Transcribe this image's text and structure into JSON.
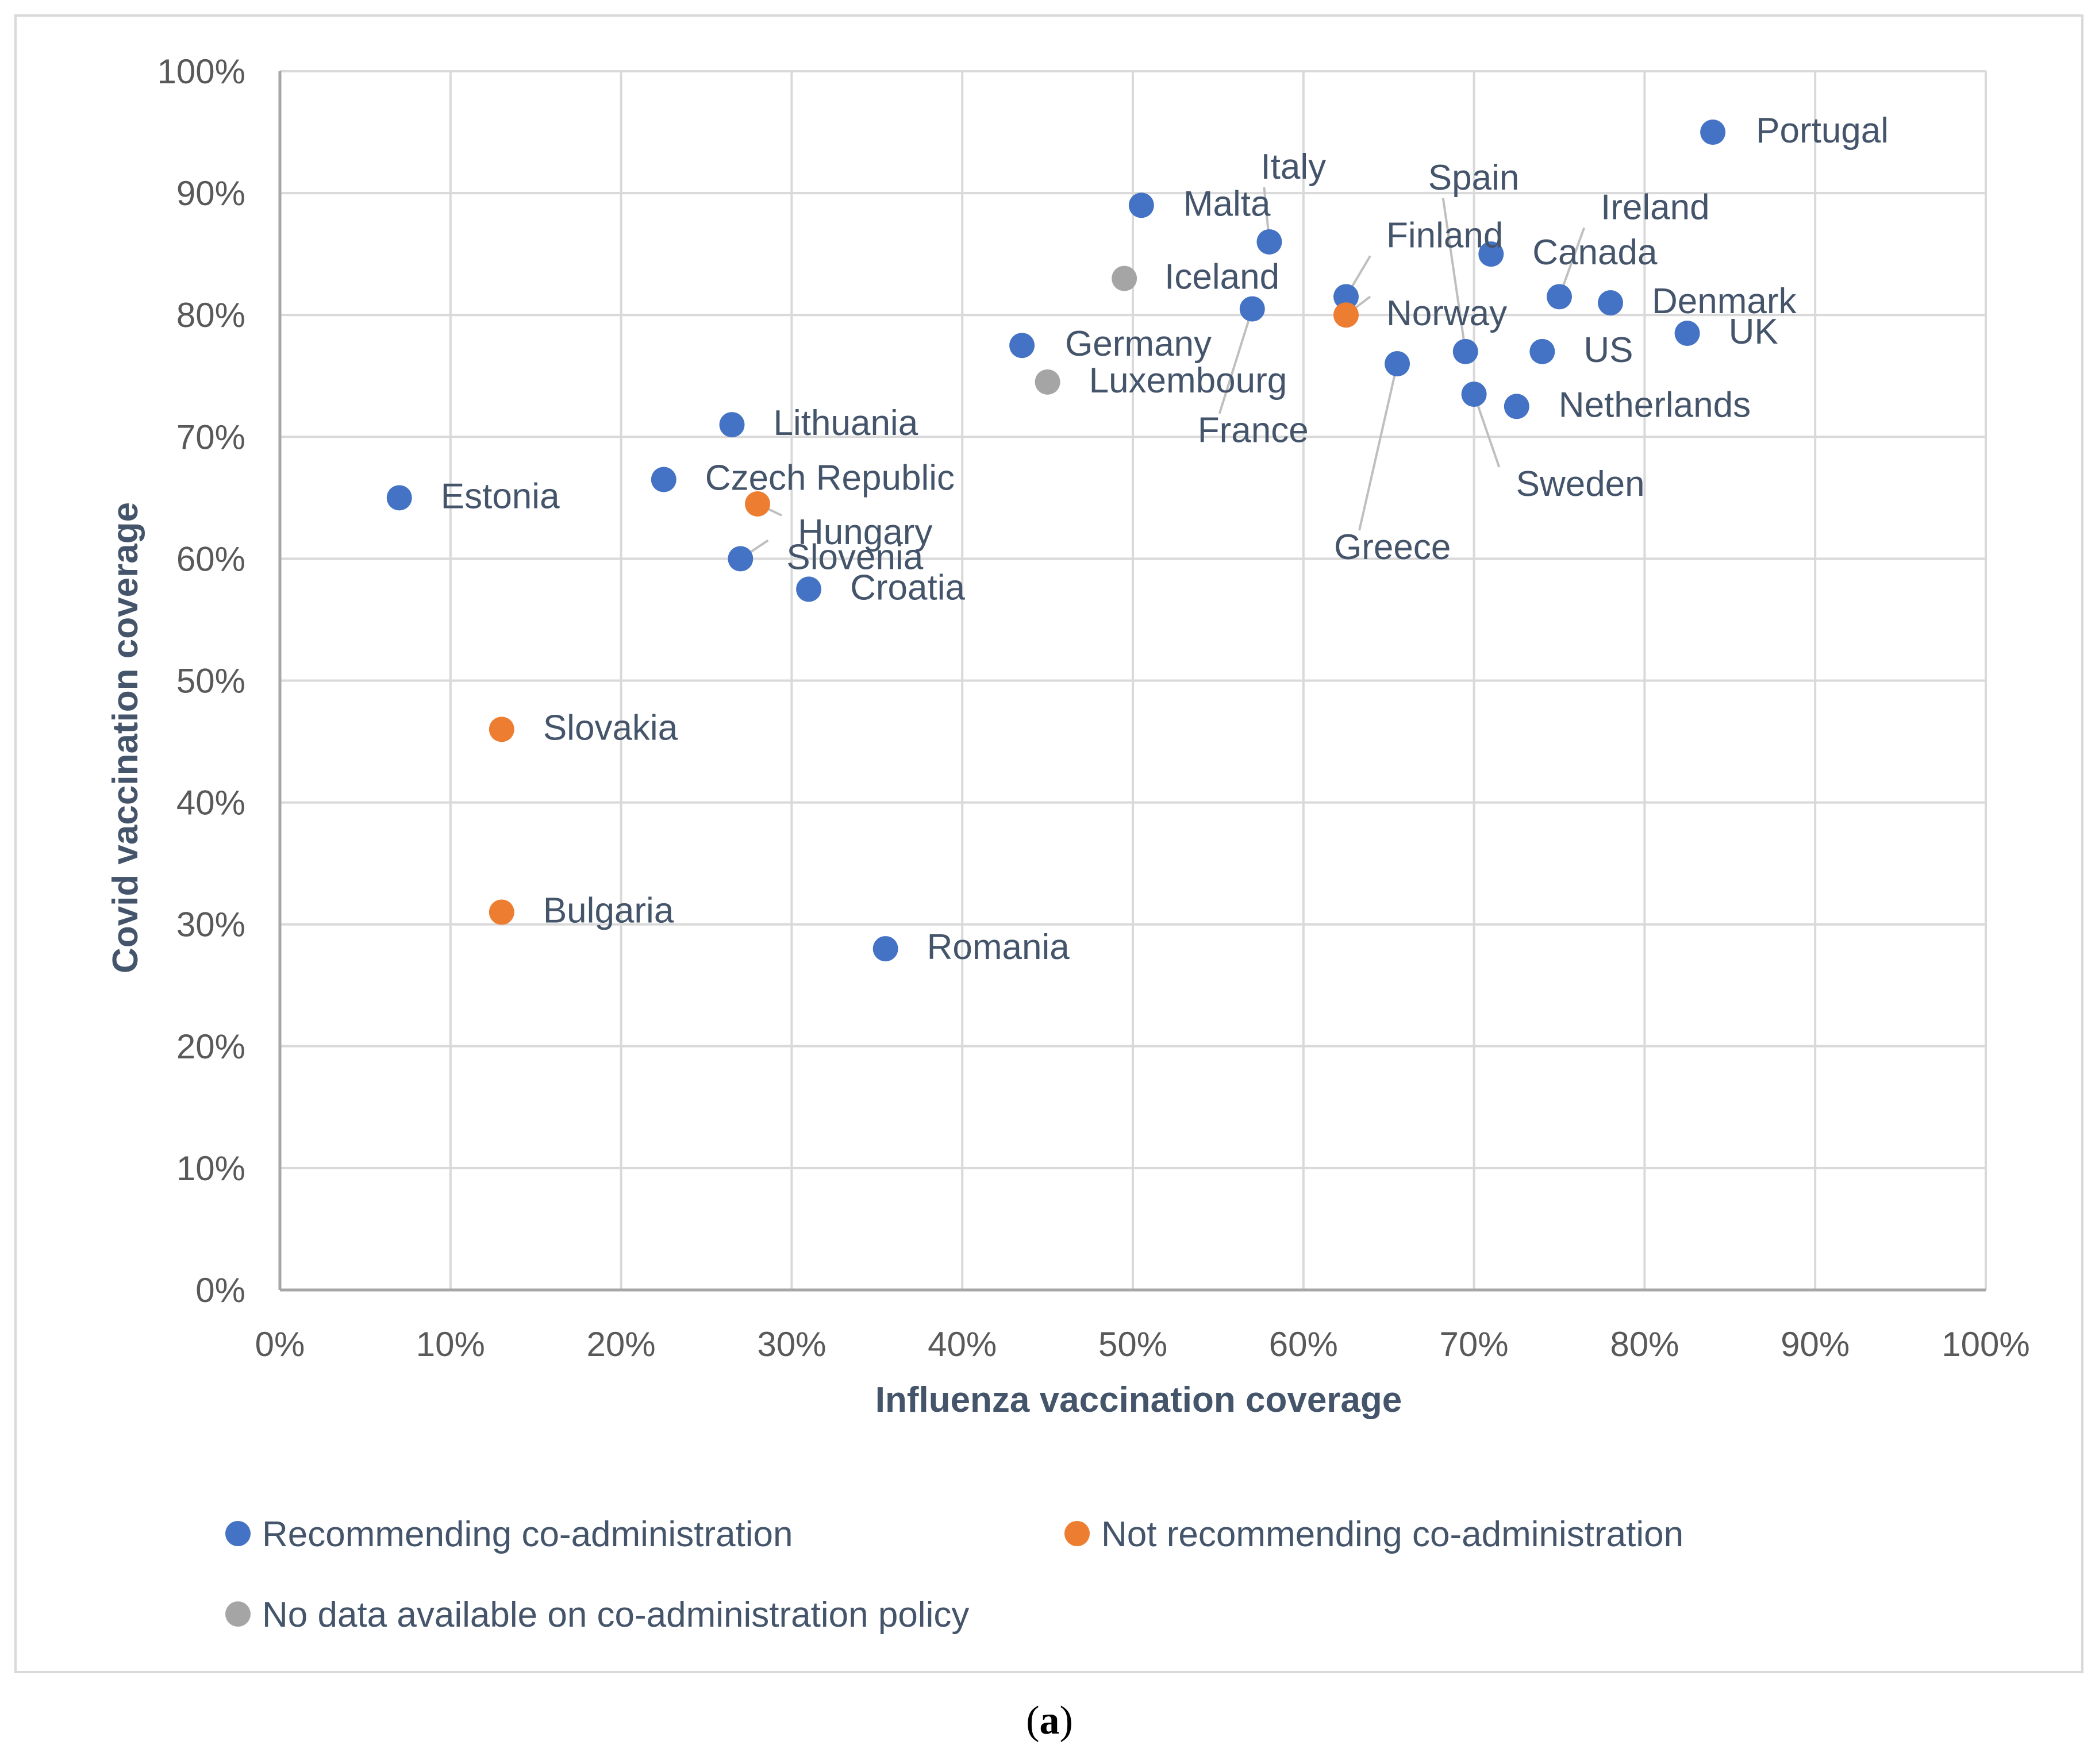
{
  "caption": {
    "open": "(",
    "letter": "a",
    "close": ")"
  },
  "chart_data": {
    "type": "scatter",
    "xlabel": "Influenza vaccination coverage",
    "ylabel": "Covid vaccination coverage",
    "xlim": [
      0,
      100
    ],
    "ylim": [
      0,
      100
    ],
    "x_ticks": [
      "0%",
      "10%",
      "20%",
      "30%",
      "40%",
      "50%",
      "60%",
      "70%",
      "80%",
      "90%",
      "100%"
    ],
    "y_ticks": [
      "0%",
      "10%",
      "20%",
      "30%",
      "40%",
      "50%",
      "60%",
      "70%",
      "80%",
      "90%",
      "100%"
    ],
    "grid": true,
    "legend_position": "bottom",
    "series": [
      {
        "name": "Recommending co-administration",
        "color": "#4472c4",
        "points": [
          {
            "label": "Portugal",
            "x": 84,
            "y": 95
          },
          {
            "label": "Malta",
            "x": 50.5,
            "y": 89
          },
          {
            "label": "Italy",
            "x": 58,
            "y": 86
          },
          {
            "label": "Canada",
            "x": 71,
            "y": 85
          },
          {
            "label": "Finland",
            "x": 62.5,
            "y": 81.5
          },
          {
            "label": "Ireland",
            "x": 75,
            "y": 81.5
          },
          {
            "label": "Denmark",
            "x": 78,
            "y": 81
          },
          {
            "label": "France",
            "x": 57,
            "y": 80.5
          },
          {
            "label": "UK",
            "x": 82.5,
            "y": 78.5
          },
          {
            "label": "Germany",
            "x": 43.5,
            "y": 77.5
          },
          {
            "label": "Spain",
            "x": 69.5,
            "y": 77
          },
          {
            "label": "US",
            "x": 74,
            "y": 77
          },
          {
            "label": "Greece",
            "x": 65.5,
            "y": 76
          },
          {
            "label": "Sweden",
            "x": 70,
            "y": 73.5
          },
          {
            "label": "Netherlands",
            "x": 72.5,
            "y": 72.5
          },
          {
            "label": "Lithuania",
            "x": 26.5,
            "y": 71
          },
          {
            "label": "Czech Republic",
            "x": 22.5,
            "y": 66.5
          },
          {
            "label": "Estonia",
            "x": 7,
            "y": 65
          },
          {
            "label": "Slovenia",
            "x": 27,
            "y": 60
          },
          {
            "label": "Croatia",
            "x": 31,
            "y": 57.5
          },
          {
            "label": "Romania",
            "x": 35.5,
            "y": 28
          }
        ]
      },
      {
        "name": "Not recommending co-administration",
        "color": "#ed7d31",
        "points": [
          {
            "label": "Norway",
            "x": 62.5,
            "y": 80
          },
          {
            "label": "Hungary",
            "x": 28,
            "y": 64.5
          },
          {
            "label": "Slovakia",
            "x": 13,
            "y": 46
          },
          {
            "label": "Bulgaria",
            "x": 13,
            "y": 31
          }
        ]
      },
      {
        "name": "No data available on co-administration policy",
        "color": "#a5a5a5",
        "points": [
          {
            "label": "Iceland",
            "x": 49.5,
            "y": 83
          },
          {
            "label": "Luxembourg",
            "x": 45,
            "y": 74.5
          }
        ]
      }
    ]
  }
}
